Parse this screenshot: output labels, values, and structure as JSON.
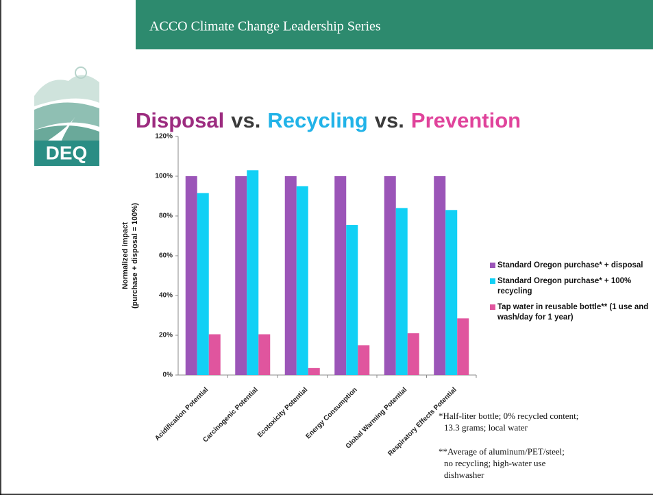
{
  "header": "ACCO Climate Change Leadership Series",
  "logo_text": "DEQ",
  "title_parts": [
    {
      "text": "Disposal",
      "color": "#9c2b7f"
    },
    {
      "text": "vs.",
      "color": "#3a3a3a"
    },
    {
      "text": "Recycling",
      "color": "#22b3e8"
    },
    {
      "text": "vs.",
      "color": "#3a3a3a"
    },
    {
      "text": "Prevention",
      "color": "#e0439b"
    }
  ],
  "chart_data": {
    "type": "bar",
    "y_label": [
      "Normalized impact",
      "(purchase + disposal = 100%)"
    ],
    "categories": [
      "Acidification Potential",
      "Carcinogenic Potential",
      "Ecotoxicity Potential",
      "Energy Consumption",
      "Global Warming Potential",
      "Respiratory Effects Potential"
    ],
    "series": [
      {
        "name": "Standard Oregon purchase* + disposal",
        "color": "#9b55b8",
        "values": [
          100,
          100,
          100,
          100,
          100,
          100
        ]
      },
      {
        "name": "Standard Oregon purchase* + 100% recycling",
        "color": "#11d0f5",
        "values": [
          91.5,
          103,
          95,
          75.5,
          84,
          83
        ]
      },
      {
        "name": "Tap water in reusable bottle** (1 use and wash/day for 1 year)",
        "color": "#e0559e",
        "values": [
          20.5,
          20.5,
          3.5,
          15,
          21,
          28.5
        ]
      }
    ],
    "ylim": [
      0,
      120
    ],
    "yticks": [
      {
        "value": 0,
        "label": "0%"
      },
      {
        "value": 20,
        "label": "20%"
      },
      {
        "value": 40,
        "label": "40%"
      },
      {
        "value": 60,
        "label": "60%"
      },
      {
        "value": 80,
        "label": "80%"
      },
      {
        "value": 100,
        "label": "100%"
      },
      {
        "value": 120,
        "label": "120%"
      }
    ],
    "grid": false,
    "legend": "right"
  },
  "footnotes": [
    [
      "*Half-liter bottle; 0% recycled content;",
      "13.3 grams; local water"
    ],
    [
      "**Average of aluminum/PET/steel;",
      "no recycling; high-water use",
      "dishwasher"
    ]
  ]
}
